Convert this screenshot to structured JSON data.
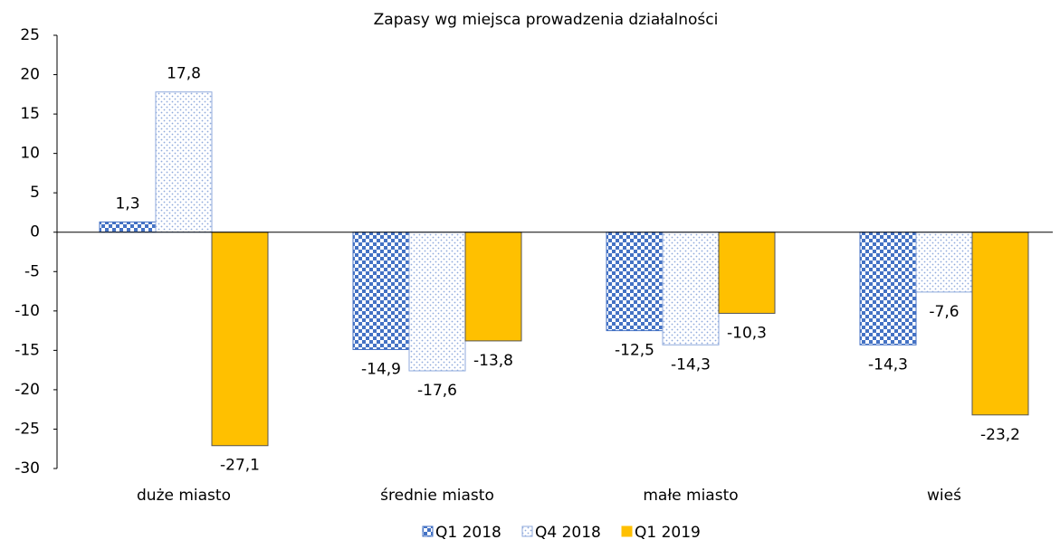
{
  "chart_data": {
    "type": "bar",
    "title": "Zapasy wg miejsca prowadzenia działalności",
    "categories": [
      "duże miasto",
      "średnie miasto",
      "małe miasto",
      "wieś"
    ],
    "series": [
      {
        "name": "Q1 2018",
        "color": "#4472c4",
        "values": [
          1.3,
          -14.9,
          -12.5,
          -14.3
        ],
        "value_labels": [
          "1,3",
          "-14,9",
          "-12,5",
          "-14,3"
        ]
      },
      {
        "name": "Q4 2018",
        "color": "#8faadc",
        "values": [
          17.8,
          -17.6,
          -14.3,
          -7.6
        ],
        "value_labels": [
          "17,8",
          "-17,6",
          "-14,3",
          "-7,6"
        ]
      },
      {
        "name": "Q1 2019",
        "color": "#ffc000",
        "values": [
          -27.1,
          -13.8,
          -10.3,
          -23.2
        ],
        "value_labels": [
          "-27,1",
          "-13,8",
          "-10,3",
          "-23,2"
        ]
      }
    ],
    "ylim": [
      -30,
      25
    ],
    "yticks": [
      25,
      20,
      15,
      10,
      5,
      0,
      -5,
      -10,
      -15,
      -20,
      -25,
      -30
    ],
    "grid": false,
    "legend": "bottom"
  }
}
